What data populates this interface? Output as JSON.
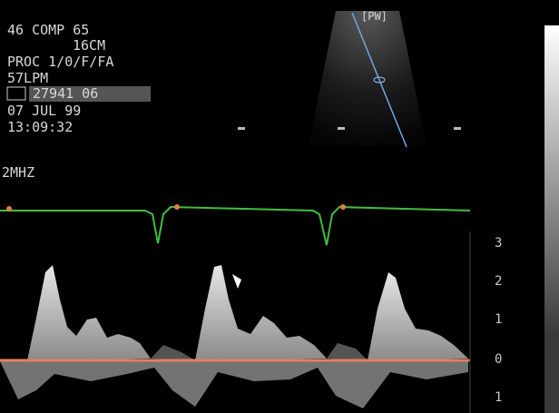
{
  "overlay": {
    "lines": [
      "46 COMP 65",
      "16CM",
      "PROC 1/0/F/FA",
      "57LPM",
      "27941 06",
      "07 JUL 99",
      "13:09:32"
    ],
    "frequency": "2MHZ"
  },
  "sector": {
    "mode_label": "[PW]"
  },
  "doppler": {
    "scale_labels": [
      "3",
      "2",
      "1",
      "0",
      "1"
    ]
  }
}
